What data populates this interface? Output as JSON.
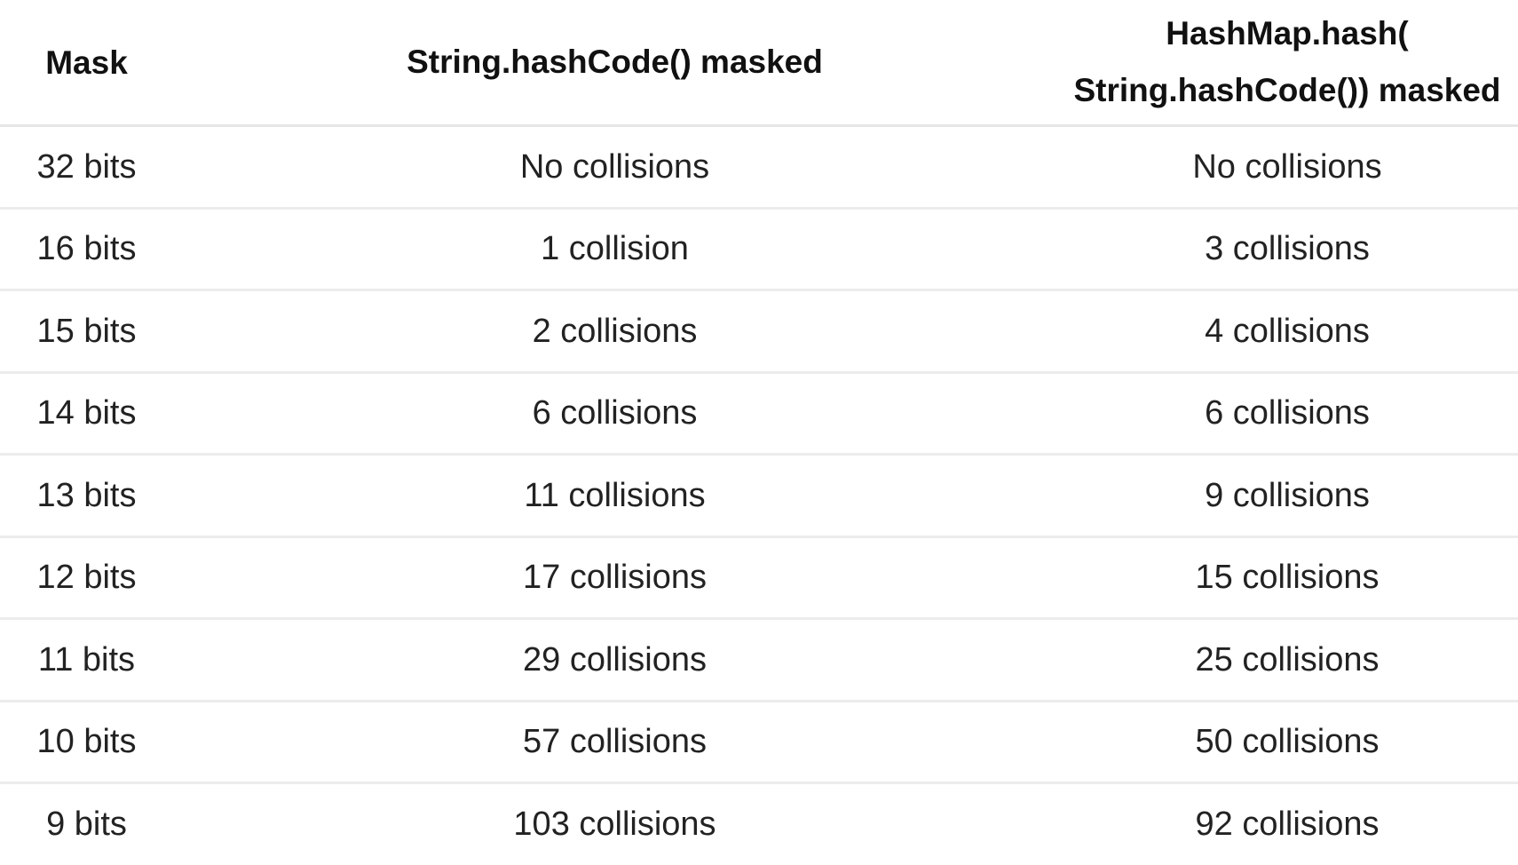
{
  "table": {
    "headers": {
      "mask": "Mask",
      "string_hashcode": "String.hashCode() masked",
      "hashmap_line1": "HashMap.hash(",
      "hashmap_line2": "String.hashCode()) masked"
    },
    "rows": [
      {
        "mask": "32 bits",
        "string": "No collisions",
        "hashmap": "No collisions"
      },
      {
        "mask": "16 bits",
        "string": "1 collision",
        "hashmap": "3 collisions"
      },
      {
        "mask": "15 bits",
        "string": "2 collisions",
        "hashmap": "4 collisions"
      },
      {
        "mask": "14 bits",
        "string": "6 collisions",
        "hashmap": "6 collisions"
      },
      {
        "mask": "13 bits",
        "string": "11 collisions",
        "hashmap": "9 collisions"
      },
      {
        "mask": "12 bits",
        "string": "17 collisions",
        "hashmap": "15 collisions"
      },
      {
        "mask": "11 bits",
        "string": "29 collisions",
        "hashmap": "25 collisions"
      },
      {
        "mask": "10 bits",
        "string": "57 collisions",
        "hashmap": "50 collisions"
      },
      {
        "mask": "9 bits",
        "string": "103 collisions",
        "hashmap": "92 collisions"
      }
    ]
  }
}
